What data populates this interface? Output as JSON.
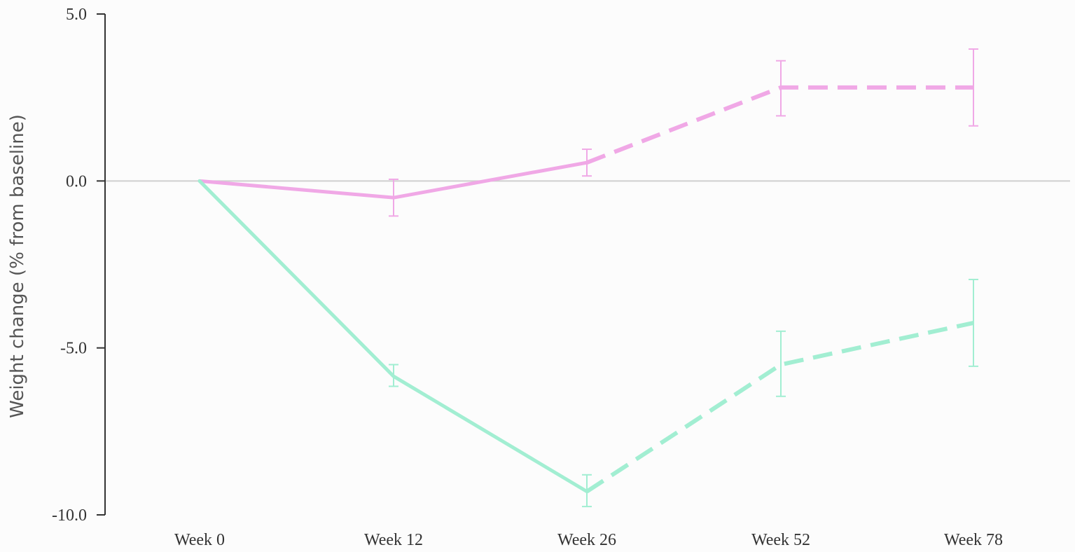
{
  "chart_data": {
    "type": "line",
    "title": "",
    "xlabel": "",
    "ylabel": "Weight change (% from baseline)",
    "categories": [
      "Week 0",
      "Week 12",
      "Week 26",
      "Week 52",
      "Week 78"
    ],
    "yticks": [
      "5.0",
      "0.0",
      "-5.0",
      "-10.0"
    ],
    "ytick_values": [
      5,
      0,
      -5,
      -10
    ],
    "ylim": [
      -10,
      5
    ],
    "grid": false,
    "reference_line": 0,
    "solid_until_index": 2,
    "series": [
      {
        "color": "#f0a8e6",
        "values": [
          0,
          -0.5,
          0.55,
          2.8,
          2.8
        ],
        "error_low": [
          null,
          -1.05,
          0.15,
          1.95,
          1.65
        ],
        "error_high": [
          null,
          0.05,
          0.95,
          3.6,
          3.95
        ]
      },
      {
        "color": "#a2eed2",
        "values": [
          0,
          -5.85,
          -9.3,
          -5.5,
          -4.25
        ],
        "error_low": [
          null,
          -6.15,
          -9.75,
          -6.45,
          -5.55
        ],
        "error_high": [
          null,
          -5.5,
          -8.8,
          -4.5,
          -2.95
        ]
      }
    ]
  }
}
